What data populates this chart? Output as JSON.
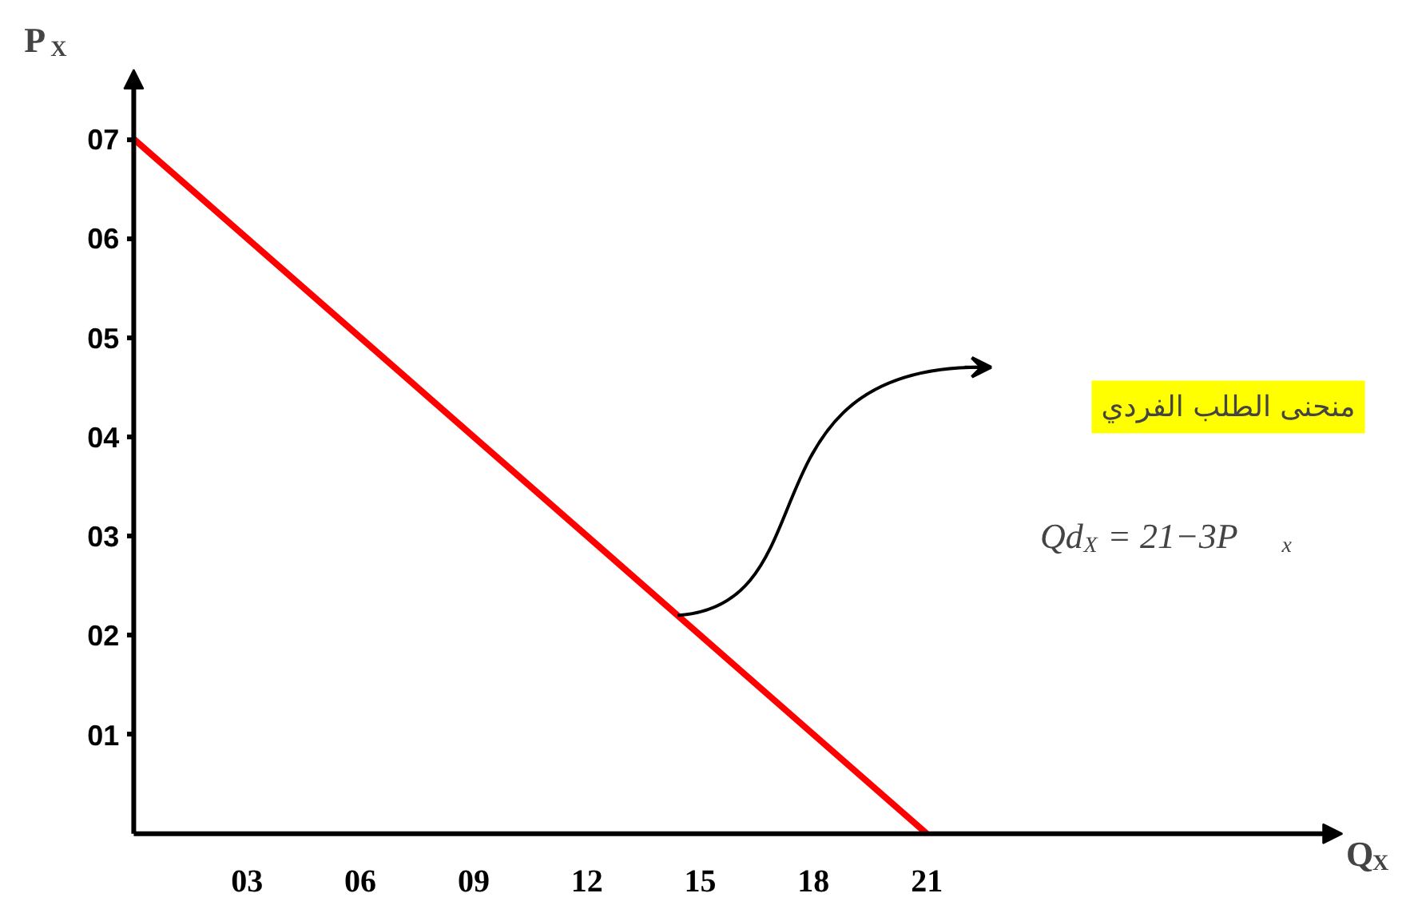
{
  "chart_data": {
    "type": "line",
    "xlabel": "Q$_{X}$",
    "ylabel": "P$_{X}$",
    "x": [
      0,
      21
    ],
    "values": [
      7,
      0
    ],
    "color": "#ff0000",
    "xlim": [
      0,
      32
    ],
    "ylim": [
      0,
      7.7
    ],
    "xticks": [
      {
        "value": 3,
        "label": "03"
      },
      {
        "value": 6,
        "label": "06"
      },
      {
        "value": 9,
        "label": "09"
      },
      {
        "value": 12,
        "label": "12"
      },
      {
        "value": 15,
        "label": "15"
      },
      {
        "value": 18,
        "label": "18"
      },
      {
        "value": 21,
        "label": "21"
      }
    ],
    "yticks": [
      {
        "value": 1,
        "label": "01"
      },
      {
        "value": 2,
        "label": "02"
      },
      {
        "value": 3,
        "label": "03"
      },
      {
        "value": 4,
        "label": "04"
      },
      {
        "value": 5,
        "label": "05"
      },
      {
        "value": 6,
        "label": "06"
      },
      {
        "value": 7,
        "label": "07"
      }
    ],
    "grid": false,
    "marker": "none",
    "line_style": "solid",
    "annotations": [
      "منحنى الطلب الفردي",
      "Qd$_{X}$ = 21−3P$_{x}$"
    ]
  }
}
